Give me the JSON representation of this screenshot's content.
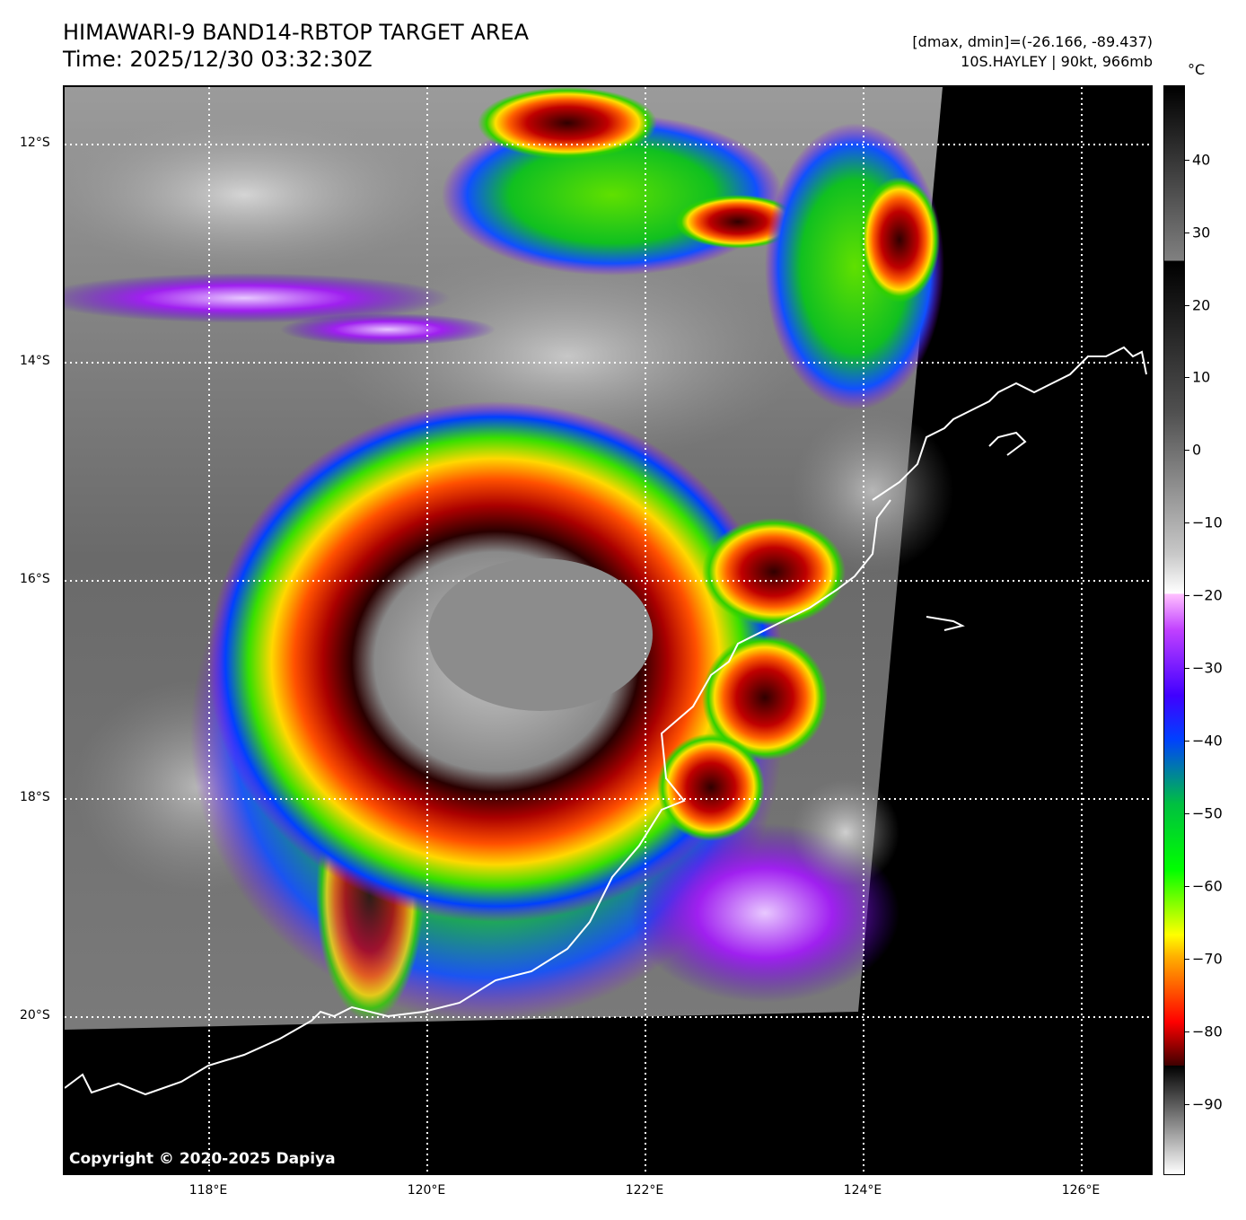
{
  "header": {
    "title_line1": "HIMAWARI-9 BAND14-RBTOP TARGET AREA",
    "title_line2": "Time: 2025/12/30 03:32:30Z",
    "range_text": "[dmax, dmin]=(-26.166, -89.437)",
    "storm_text": "10S.HAYLEY | 90kt, 966mb"
  },
  "map": {
    "copyright": "Copyright © 2020-2025 Dapiya",
    "lat_labels": [
      "12°S",
      "14°S",
      "16°S",
      "18°S",
      "20°S"
    ],
    "lon_labels": [
      "118°E",
      "120°E",
      "122°E",
      "124°E",
      "126°E"
    ]
  },
  "colorbar": {
    "unit": "°C",
    "tick_labels": [
      "40",
      "30",
      "20",
      "10",
      "0",
      "−10",
      "−20",
      "−30",
      "−40",
      "−50",
      "−60",
      "−70",
      "−80",
      "−90"
    ],
    "range": [
      -100,
      50
    ]
  }
}
